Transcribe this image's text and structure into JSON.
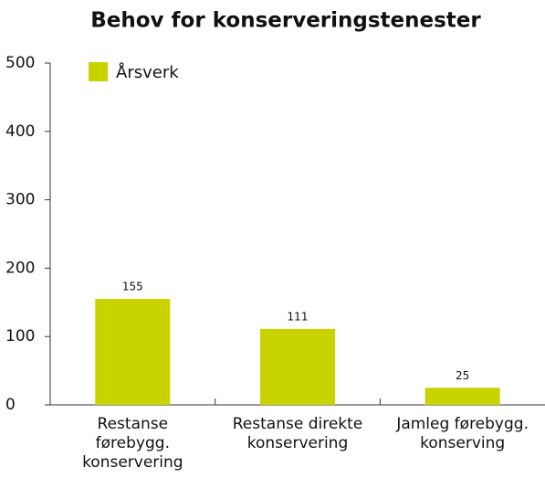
{
  "chart_data": {
    "type": "bar",
    "title": "Behov for konserveringstenester",
    "categories": [
      "Restanse førebygg. konservering",
      "Restanse direkte konservering",
      "Jamleg førebygg. konserving"
    ],
    "series": [
      {
        "name": "Årsverk",
        "color": "#c9d300",
        "values": [
          155,
          111,
          25
        ]
      }
    ],
    "ylim": [
      0,
      500
    ],
    "yticks": [
      0,
      100,
      200,
      300,
      400,
      500
    ],
    "grid": false,
    "legend": "top-left"
  }
}
